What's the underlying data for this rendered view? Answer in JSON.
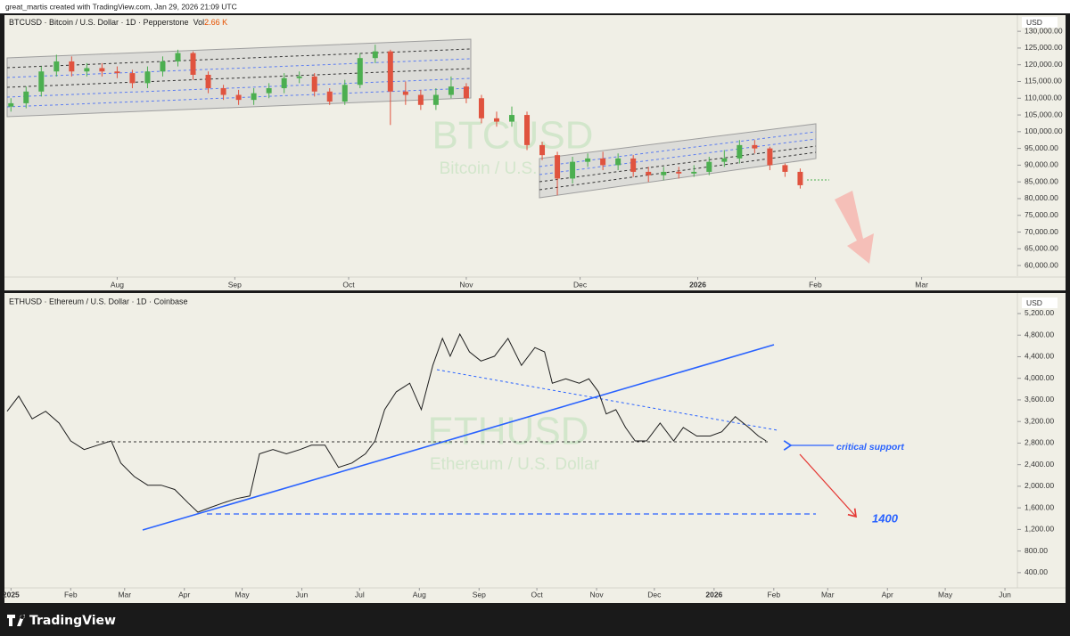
{
  "header": "great_martis created with TradingView.com, Jan 29, 2026 21:09 UTC",
  "footer": "TradingView",
  "chart_data": [
    {
      "type": "candlestick",
      "title": "BTCUSD · Bitcoin / U.S. Dollar · 1D · Pepperstone",
      "indicator": "Vol",
      "indicator_value": "2.66 K",
      "watermark": "BTCUSD",
      "watermark_subtitle": "Bitcoin / U.S. Dollar",
      "currency": "USD",
      "up_color": "#4caf50",
      "down_color": "#e0533f",
      "x": [
        3,
        7,
        11,
        15,
        19,
        23,
        27,
        31,
        35,
        39,
        43,
        47,
        51,
        55,
        59,
        63,
        67,
        71,
        75,
        79,
        83,
        87,
        91,
        95,
        99,
        103,
        107,
        111,
        115,
        119,
        123,
        127,
        131,
        135,
        139,
        143,
        147,
        151,
        155,
        159,
        163,
        167,
        171,
        175,
        179,
        183,
        187,
        191,
        195,
        199,
        203,
        207,
        211
      ],
      "open": [
        107500,
        108500,
        112000,
        118000,
        121000,
        118000,
        119000,
        118000,
        117500,
        114500,
        118000,
        121000,
        123500,
        117000,
        113000,
        111000,
        109500,
        111500,
        113000,
        116000,
        116500,
        112000,
        109000,
        114000,
        122000,
        124000,
        112000,
        111000,
        108000,
        111000,
        113500,
        110000,
        104000,
        103000,
        105000,
        96000,
        93000,
        86000,
        91000,
        92000,
        90000,
        92000,
        88000,
        87000,
        88000,
        87500,
        88000,
        91000,
        92000,
        96000,
        95000,
        90000,
        88000
      ],
      "high": [
        110000,
        113500,
        119500,
        123000,
        122500,
        120500,
        120500,
        119500,
        118500,
        119500,
        122500,
        124500,
        124000,
        118000,
        114000,
        112500,
        113000,
        114500,
        117500,
        118000,
        117500,
        113000,
        115500,
        123500,
        126000,
        124500,
        115000,
        112500,
        113000,
        116500,
        114500,
        111000,
        106000,
        107500,
        106000,
        97000,
        94000,
        92500,
        93500,
        94000,
        93500,
        93000,
        89500,
        89500,
        89500,
        90000,
        92500,
        94500,
        97500,
        97500,
        95500,
        90500,
        89000
      ],
      "low": [
        106000,
        107000,
        110500,
        116500,
        116500,
        116500,
        116500,
        116000,
        113000,
        113000,
        116500,
        119500,
        115500,
        111500,
        109500,
        108000,
        108000,
        110000,
        111500,
        114500,
        110500,
        108000,
        108000,
        113000,
        120500,
        102000,
        108000,
        106500,
        106500,
        110000,
        108500,
        102500,
        101500,
        101500,
        94500,
        91500,
        81000,
        84500,
        89500,
        88500,
        88500,
        86500,
        85000,
        85500,
        86000,
        86500,
        87000,
        89500,
        90500,
        93500,
        88500,
        86500,
        83000
      ],
      "close": [
        108500,
        112000,
        118000,
        121000,
        118000,
        119000,
        118000,
        117500,
        114500,
        118000,
        121000,
        123500,
        117000,
        113000,
        111000,
        109500,
        111500,
        113000,
        116000,
        116500,
        112000,
        109000,
        114000,
        122000,
        124000,
        112000,
        111000,
        108000,
        111000,
        113500,
        110000,
        104000,
        103000,
        105000,
        96000,
        93000,
        86000,
        91000,
        92000,
        90000,
        92000,
        88000,
        87000,
        88000,
        87500,
        88000,
        91000,
        92000,
        96000,
        95000,
        90000,
        88000,
        84000
      ],
      "xlim": [
        2,
        268
      ],
      "xticks": [
        {
          "value": 31,
          "label": "Aug"
        },
        {
          "value": 62,
          "label": "Sep"
        },
        {
          "value": 92,
          "label": "Oct"
        },
        {
          "value": 123,
          "label": "Nov"
        },
        {
          "value": 153,
          "label": "Dec"
        },
        {
          "value": 184,
          "label": "2026"
        },
        {
          "value": 215,
          "label": "Feb"
        },
        {
          "value": 243,
          "label": "Mar"
        }
      ],
      "ylim": [
        55500,
        133500
      ],
      "yticks": [
        {
          "value": 60000,
          "label": "60,000.00"
        },
        {
          "value": 65000,
          "label": "65,000.00"
        },
        {
          "value": 70000,
          "label": "70,000.00"
        },
        {
          "value": 75000,
          "label": "75,000.00"
        },
        {
          "value": 80000,
          "label": "80,000.00"
        },
        {
          "value": 85000,
          "label": "85,000.00"
        },
        {
          "value": 90000,
          "label": "90,000.00"
        },
        {
          "value": 95000,
          "label": "95,000.00"
        },
        {
          "value": 100000,
          "label": "100,000.00"
        },
        {
          "value": 105000,
          "label": "105,000.00"
        },
        {
          "value": 110000,
          "label": "110,000.00"
        },
        {
          "value": 115000,
          "label": "115,000.00"
        },
        {
          "value": 120000,
          "label": "120,000.00"
        },
        {
          "value": 125000,
          "label": "125,000.00"
        },
        {
          "value": 130000,
          "label": "130,000.00"
        }
      ]
    },
    {
      "type": "line",
      "title": "ETHUSD · Ethereum / U.S. Dollar · 1D · Coinbase",
      "watermark": "ETHUSD",
      "watermark_subtitle": "Ethereum / U.S. Dollar",
      "currency": "USD",
      "color": "#1e1e1e",
      "annotations": [
        "critical support",
        "1400"
      ],
      "x": [
        -2,
        4,
        11,
        18,
        25,
        31,
        38,
        45,
        52,
        57,
        64,
        71,
        78,
        85,
        92,
        97,
        103,
        110,
        117,
        124,
        129,
        136,
        143,
        150,
        156,
        163,
        170,
        177,
        184,
        189,
        194,
        200,
        207,
        213,
        219,
        224,
        228,
        233,
        238,
        244,
        251,
        258,
        265,
        272,
        277,
        281,
        288,
        295,
        300,
        305,
        309,
        314,
        319,
        324,
        330,
        337,
        344,
        349,
        356,
        363,
        369,
        376,
        383,
        388,
        392
      ],
      "values": [
        3390,
        3670,
        3250,
        3390,
        3170,
        2840,
        2680,
        2760,
        2840,
        2430,
        2180,
        2020,
        2020,
        1940,
        1690,
        1520,
        1600,
        1690,
        1770,
        1820,
        2600,
        2680,
        2600,
        2680,
        2760,
        2760,
        2350,
        2430,
        2600,
        2840,
        3420,
        3750,
        3910,
        3420,
        4240,
        4740,
        4410,
        4820,
        4490,
        4320,
        4410,
        4740,
        4240,
        4570,
        4490,
        3910,
        3990,
        3910,
        3990,
        3750,
        3340,
        3420,
        3090,
        2840,
        2840,
        3170,
        2840,
        3090,
        2930,
        2930,
        3010,
        3290,
        3090,
        2930,
        2840
      ],
      "xlim": [
        -2,
        522
      ],
      "xticks": [
        {
          "value": 0,
          "label": "2025"
        },
        {
          "value": 31,
          "label": "Feb"
        },
        {
          "value": 59,
          "label": "Mar"
        },
        {
          "value": 90,
          "label": "Apr"
        },
        {
          "value": 120,
          "label": "May"
        },
        {
          "value": 151,
          "label": "Jun"
        },
        {
          "value": 181,
          "label": "Jul"
        },
        {
          "value": 212,
          "label": "Aug"
        },
        {
          "value": 243,
          "label": "Sep"
        },
        {
          "value": 273,
          "label": "Oct"
        },
        {
          "value": 304,
          "label": "Nov"
        },
        {
          "value": 334,
          "label": "Dec"
        },
        {
          "value": 365,
          "label": "2026"
        },
        {
          "value": 396,
          "label": "Feb"
        },
        {
          "value": 424,
          "label": "Mar"
        },
        {
          "value": 455,
          "label": "Apr"
        },
        {
          "value": 485,
          "label": "May"
        },
        {
          "value": 516,
          "label": "Jun"
        }
      ],
      "ylim": [
        150,
        5530
      ],
      "yticks": [
        {
          "value": 400,
          "label": "400.00"
        },
        {
          "value": 800,
          "label": "800.00"
        },
        {
          "value": 1200,
          "label": "1,200.00"
        },
        {
          "value": 1600,
          "label": "1,600.00"
        },
        {
          "value": 2000,
          "label": "2,000.00"
        },
        {
          "value": 2400,
          "label": "2,400.00"
        },
        {
          "value": 2800,
          "label": "2,800.00"
        },
        {
          "value": 3200,
          "label": "3,200.00"
        },
        {
          "value": 3600,
          "label": "3,600.00"
        },
        {
          "value": 4000,
          "label": "4,000.00"
        },
        {
          "value": 4400,
          "label": "4,400.00"
        },
        {
          "value": 4800,
          "label": "4,800.00"
        },
        {
          "value": 5200,
          "label": "5,200.00"
        }
      ]
    }
  ]
}
